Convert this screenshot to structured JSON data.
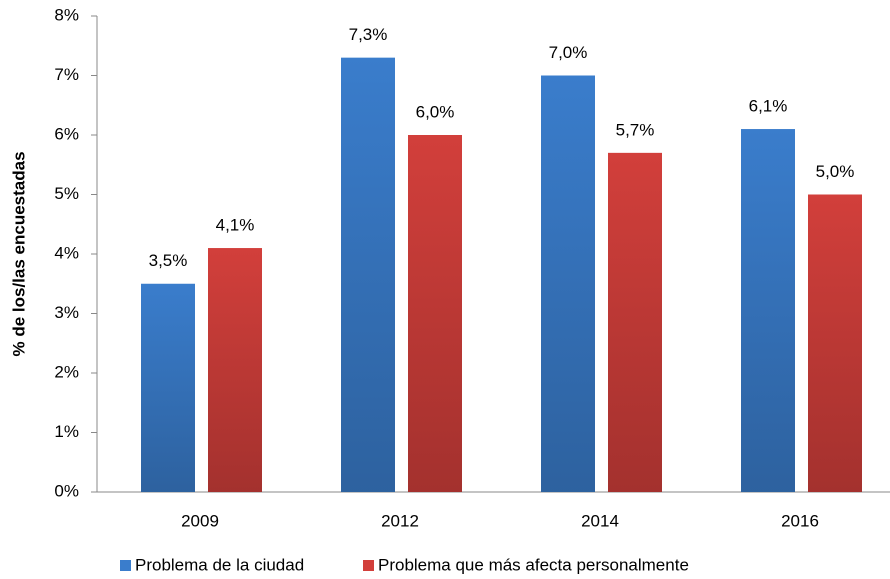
{
  "chart_data": {
    "type": "bar",
    "y_label": "% de los/las encuestadas",
    "categories": [
      "2009",
      "2012",
      "2014",
      "2016"
    ],
    "series": [
      {
        "name": "Problema de la ciudad",
        "color": "#3a7dcc",
        "values": [
          3.5,
          7.3,
          7.0,
          6.1
        ],
        "value_labels": [
          "3,5%",
          "7,3%",
          "7,0%",
          "6,1%"
        ]
      },
      {
        "name": "Problema que más afecta personalmente",
        "color": "#d23f3b",
        "values": [
          4.1,
          6.0,
          5.7,
          5.0
        ],
        "value_labels": [
          "4,1%",
          "6,0%",
          "5,7%",
          "5,0%"
        ]
      }
    ],
    "ylim": [
      0,
      8
    ],
    "yticks": [
      {
        "value": 0,
        "label": "0%"
      },
      {
        "value": 1,
        "label": "1%"
      },
      {
        "value": 2,
        "label": "2%"
      },
      {
        "value": 3,
        "label": "3%"
      },
      {
        "value": 4,
        "label": "4%"
      },
      {
        "value": 5,
        "label": "5%"
      },
      {
        "value": 6,
        "label": "6%"
      },
      {
        "value": 7,
        "label": "7%"
      },
      {
        "value": 8,
        "label": "8%"
      }
    ],
    "grid": false,
    "legend": "bottom"
  }
}
